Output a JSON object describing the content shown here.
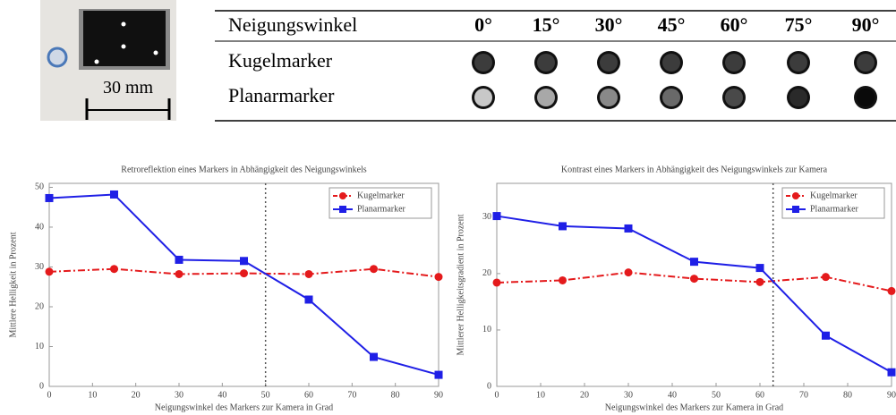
{
  "photo": {
    "scale_label": "30 mm"
  },
  "table": {
    "header": [
      "Neigungswinkel",
      "0°",
      "15°",
      "30°",
      "45°",
      "60°",
      "75°",
      "90°"
    ],
    "rows": [
      "Kugelmarker",
      "Planarmarker"
    ]
  },
  "chart_data": [
    {
      "type": "line",
      "title": "Retroreflektion eines Markers in Abhängigkeit des Neigungswinkels",
      "xlabel": "Neigungswinkel des Markers zur Kamera in Grad",
      "ylabel": "Mittlere Helligkeit in Prozent",
      "x": [
        0,
        15,
        30,
        45,
        60,
        75,
        90
      ],
      "series": [
        {
          "name": "Kugelmarker",
          "color": "#e41a1c",
          "values": [
            28.8,
            29.5,
            28.2,
            28.4,
            28.2,
            29.5,
            27.5
          ]
        },
        {
          "name": "Planarmarker",
          "color": "#1f1fe6",
          "values": [
            47.3,
            48.2,
            31.8,
            31.5,
            21.8,
            7.4,
            2.9
          ]
        }
      ],
      "xlim": [
        0,
        90
      ],
      "ylim": [
        0,
        51
      ],
      "xticks": [
        0,
        10,
        20,
        30,
        40,
        50,
        60,
        70,
        80,
        90
      ],
      "yticks": [
        0,
        10,
        20,
        30,
        40,
        50
      ],
      "reference_line_x": 50,
      "legend": "upper right"
    },
    {
      "type": "line",
      "title": "Kontrast eines Markers in Abhängigkeit des Neigungswinkels zur Kamera",
      "xlabel": "Neigungswinkel des Markers zur Kamera in Grad",
      "ylabel": "Mittlerer Helligkeitsgradient in Prozent",
      "x": [
        0,
        15,
        30,
        45,
        60,
        75,
        90
      ],
      "series": [
        {
          "name": "Kugelmarker",
          "color": "#e41a1c",
          "values": [
            18.4,
            18.8,
            20.2,
            19.1,
            18.5,
            19.4,
            16.9
          ]
        },
        {
          "name": "Planarmarker",
          "color": "#1f1fe6",
          "values": [
            30.2,
            28.4,
            28,
            22.1,
            21,
            9,
            2.5
          ]
        }
      ],
      "xlim": [
        0,
        90
      ],
      "ylim": [
        0,
        36
      ],
      "xticks": [
        0,
        10,
        20,
        30,
        40,
        50,
        60,
        70,
        80,
        90
      ],
      "yticks": [
        0,
        10,
        20,
        30
      ],
      "reference_line_x": 63,
      "legend": "upper right"
    }
  ]
}
